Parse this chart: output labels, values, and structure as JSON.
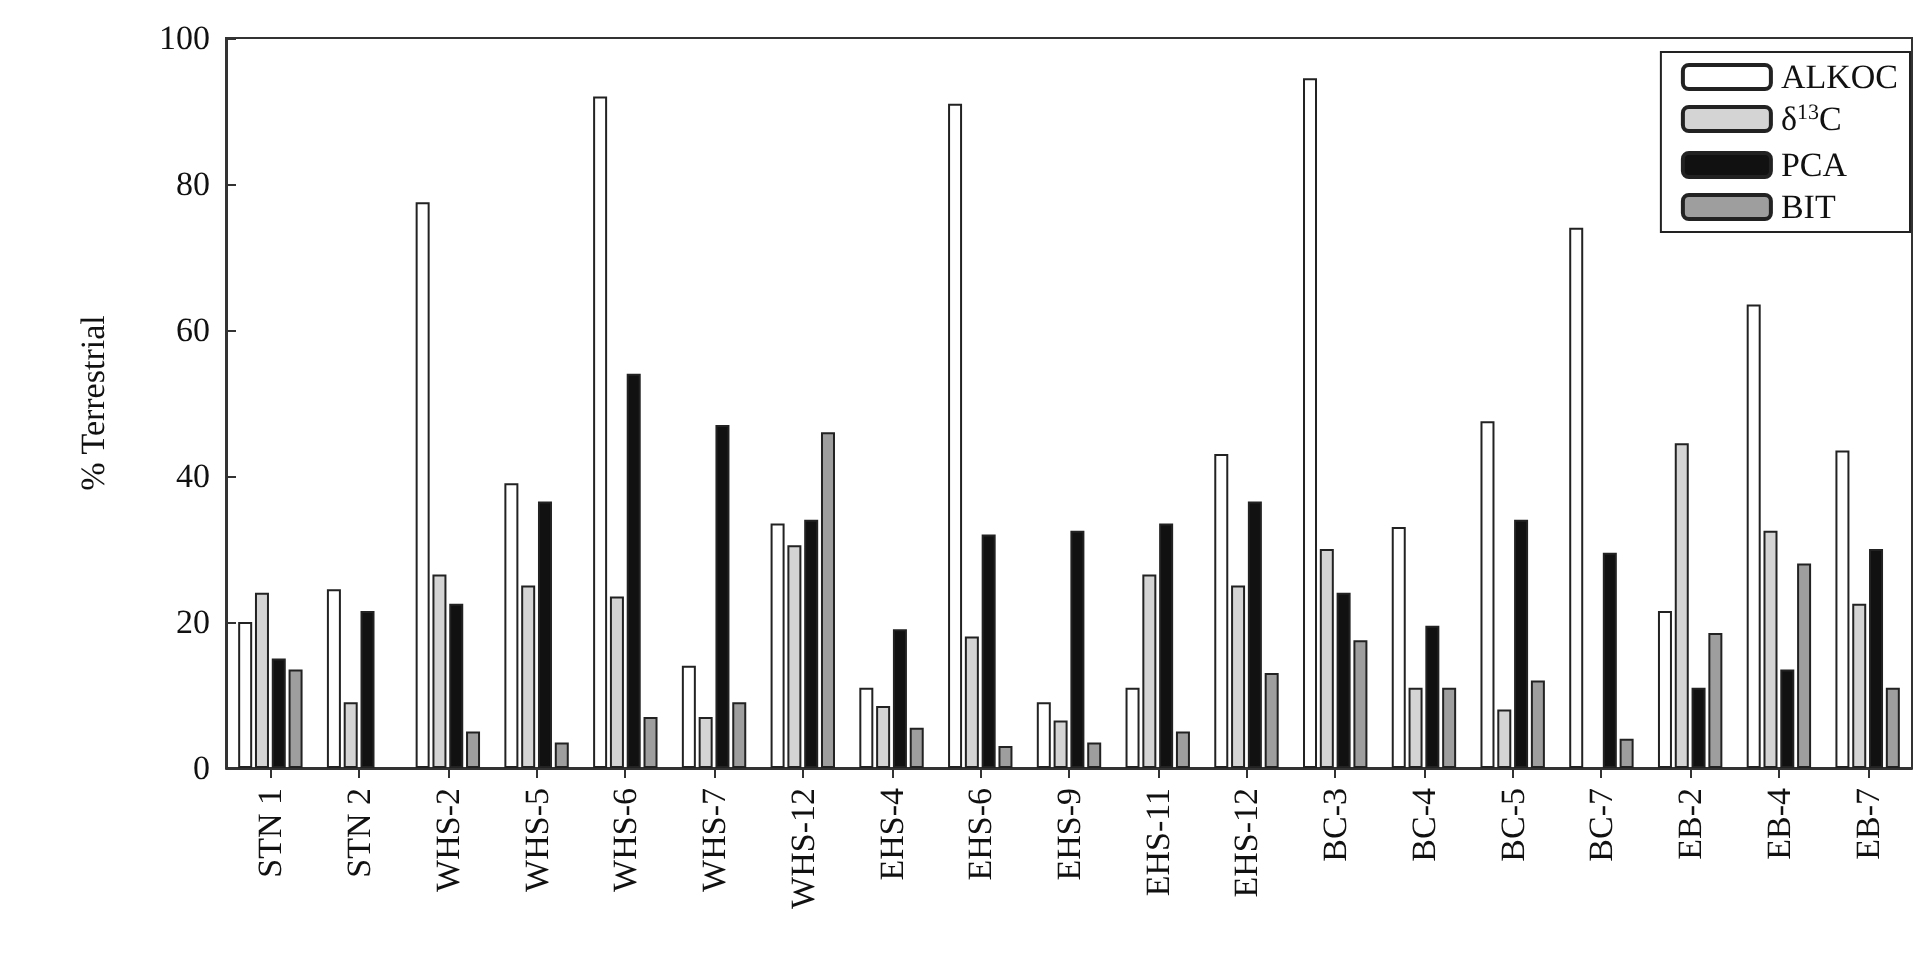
{
  "chart_data": {
    "type": "bar",
    "ylabel": "% Terrestrial",
    "categories": [
      "STN 1",
      "STN 2",
      "WHS-2",
      "WHS-5",
      "WHS-6",
      "WHS-7",
      "WHS-12",
      "EHS-4",
      "EHS-6",
      "EHS-9",
      "EHS-11",
      "EHS-12",
      "BC-3",
      "BC-4",
      "BC-5",
      "BC-7",
      "EB-2",
      "EB-4",
      "EB-7"
    ],
    "series": [
      {
        "name": "ALKOC",
        "color": "#ffffff",
        "values": [
          20,
          24.5,
          77.5,
          39,
          92,
          14,
          33.5,
          11,
          91,
          9,
          11,
          43,
          94.5,
          33,
          47.5,
          74,
          21.5,
          63.5,
          43.5
        ]
      },
      {
        "name": "δ$^{13}$C",
        "color": "#d4d4d4",
        "values": [
          24,
          9,
          26.5,
          25,
          23.5,
          7,
          30.5,
          8.5,
          18,
          6.5,
          26.5,
          25,
          30,
          11,
          8,
          null,
          44.5,
          32.5,
          22.5
        ]
      },
      {
        "name": "PCA",
        "color": "#111111",
        "values": [
          15,
          21.5,
          22.5,
          36.5,
          54,
          47,
          34,
          19,
          32,
          32.5,
          33.5,
          36.5,
          24,
          19.5,
          34,
          29.5,
          11,
          13.5,
          30
        ]
      },
      {
        "name": "BIT",
        "color": "#9e9e9e",
        "values": [
          13.5,
          null,
          5,
          3.5,
          7,
          9,
          46,
          5.5,
          3,
          3.5,
          5,
          13,
          17.5,
          11,
          12,
          4,
          18.5,
          28,
          11
        ]
      }
    ],
    "ylim": [
      0,
      100
    ],
    "yticks": [
      0,
      20,
      40,
      60,
      80,
      100
    ],
    "grid": false,
    "legend": "top right"
  }
}
